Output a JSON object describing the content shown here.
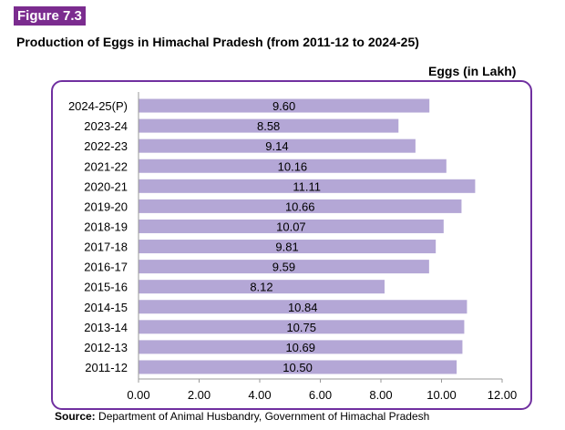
{
  "figure_label": "Figure 7.3",
  "title": "Production of Eggs in Himachal Pradesh (from 2011-12 to 2024-25)",
  "source": {
    "prefix": "Source:",
    "text": "Department of Animal Husbandry, Government of Himachal Pradesh"
  },
  "colors": {
    "bar": "#b4a7d6",
    "frame": "#7030a0",
    "badge": "#7b2c8f"
  },
  "chart_data": {
    "type": "bar",
    "orientation": "horizontal",
    "unit_label": "Eggs (in Lakh)",
    "categories": [
      "2024-25(P)",
      "2023-24",
      "2022-23",
      "2021-22",
      "2020-21",
      "2019-20",
      "2018-19",
      "2017-18",
      "2016-17",
      "2015-16",
      "2014-15",
      "2013-14",
      "2012-13",
      "2011-12"
    ],
    "values": [
      9.6,
      8.58,
      9.14,
      10.16,
      11.11,
      10.66,
      10.07,
      9.81,
      9.59,
      8.12,
      10.84,
      10.75,
      10.69,
      10.5
    ],
    "data_labels": [
      "9.60",
      "8.58",
      "9.14",
      "10.16",
      "11.11",
      "10.66",
      "10.07",
      "9.81",
      "9.59",
      "8.12",
      "10.84",
      "10.75",
      "10.69",
      "10.50"
    ],
    "xlim": [
      0,
      12
    ],
    "xticks": [
      "0.00",
      "2.00",
      "4.00",
      "6.00",
      "8.00",
      "10.00",
      "12.00"
    ],
    "grid": false,
    "legend": "none"
  }
}
